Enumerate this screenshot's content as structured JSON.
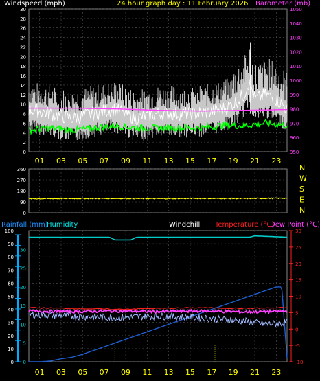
{
  "title": "24 hour graph day : 11 February 2026",
  "colors": {
    "wind": "#ffffff",
    "gust_fill": "#c8c8c8",
    "avg": "#00ff00",
    "baro": "#ff40ff",
    "dir": "#ffff00",
    "hum": "#00cccc",
    "rain": "#1e5fd0",
    "rain_axis": "#00aaff",
    "temp": "#ff2020",
    "dew": "#ff40ff",
    "chill": "#a0b8ff",
    "grid": "#555555",
    "hours": "#ffff00"
  },
  "hour_labels": [
    "01",
    "03",
    "05",
    "07",
    "09",
    "11",
    "13",
    "15",
    "17",
    "19",
    "21",
    "23"
  ],
  "panel1": {
    "left_title": "Windspeed (mph)",
    "right_title": "Barometer (mb)",
    "left_ticks": [
      "0",
      "2",
      "4",
      "6",
      "8",
      "10",
      "12",
      "14",
      "16",
      "18",
      "20",
      "22",
      "24",
      "26",
      "28",
      "30"
    ],
    "right_ticks": [
      "950",
      "960",
      "970",
      "980",
      "990",
      "1000",
      "1010",
      "1020",
      "1030",
      "1040",
      "1050"
    ],
    "ylim_left": [
      0,
      30
    ],
    "ylim_right": [
      950,
      1050
    ]
  },
  "panel2": {
    "left_ticks": [
      "0",
      "90",
      "180",
      "270",
      "360"
    ],
    "right_letters": [
      "N",
      "W",
      "S",
      "E",
      "N"
    ],
    "ylim": [
      0,
      360
    ]
  },
  "panel3": {
    "rain_title": "Rainfall (mm)",
    "humidity_title": "Humidity",
    "windchill_title": "Windchill",
    "temp_title": "Temperature (°C)",
    "dew_title": "Dew Point (°C)",
    "hum_ticks": [
      "0",
      "10",
      "20",
      "30",
      "40",
      "50",
      "60",
      "70",
      "80",
      "90",
      "100"
    ],
    "rain_ticks": [
      "0",
      "5",
      "10",
      "15",
      "20",
      "25",
      "30"
    ],
    "temp_ticks": [
      "-10",
      "-5",
      "0",
      "5",
      "10",
      "15",
      "20",
      "25",
      "30"
    ],
    "ylim_humidity": [
      0,
      100
    ],
    "ylim_rain": [
      0,
      35
    ],
    "ylim_temp": [
      -10,
      30
    ]
  },
  "chart_data": [
    {
      "type": "line",
      "title": "",
      "xlabel": "",
      "ylabel": "Windspeed (mph)",
      "x_range_hours": [
        0,
        24
      ],
      "series": [
        {
          "name": "Windspeed (mph)",
          "x": [
            0,
            2,
            4,
            6,
            8,
            10,
            12,
            14,
            16,
            18,
            19,
            20,
            20.5,
            21,
            22,
            23,
            24
          ],
          "y": [
            10,
            9,
            8,
            9,
            10,
            8,
            9,
            9,
            9,
            10,
            11,
            13,
            16,
            12,
            13,
            12,
            10
          ],
          "max_gust": 23
        },
        {
          "name": "avg",
          "x": [
            0,
            2,
            4,
            6,
            8,
            10,
            12,
            14,
            16,
            18,
            20,
            22,
            24
          ],
          "y": [
            4.5,
            5,
            4.5,
            5,
            5.5,
            5,
            5,
            5,
            5,
            5.5,
            5.5,
            6,
            5.5
          ]
        },
        {
          "name": "Barometer (mb)",
          "x": [
            0,
            4,
            8,
            12,
            16,
            20,
            24
          ],
          "y": [
            980.5,
            980.5,
            980,
            979,
            978.5,
            979,
            979.5
          ]
        }
      ]
    },
    {
      "type": "line",
      "ylabel": "Wind direction",
      "series": [
        {
          "name": "direction",
          "x": [
            0,
            4,
            8,
            12,
            16,
            20,
            24
          ],
          "y": [
            115,
            117,
            118,
            116,
            118,
            117,
            120
          ]
        }
      ]
    },
    {
      "type": "line",
      "series": [
        {
          "name": "Humidity",
          "x": [
            0,
            7.5,
            8,
            9.5,
            10,
            20.5,
            21,
            24
          ],
          "y": [
            95,
            95,
            93,
            93,
            95,
            95,
            96,
            95
          ]
        },
        {
          "name": "Rainfall (mm)",
          "x": [
            0,
            1,
            2,
            3,
            4,
            5,
            6,
            7,
            8,
            9,
            10,
            11,
            12,
            13,
            14,
            15,
            16,
            17,
            18,
            19,
            20,
            21,
            22,
            23,
            23.5,
            24
          ],
          "y": [
            0,
            0,
            0.2,
            0.8,
            1.2,
            2,
            3,
            4,
            5,
            6,
            7,
            8,
            9,
            10,
            11,
            12,
            13,
            14,
            15,
            16,
            17,
            18,
            19,
            20,
            20,
            1
          ]
        },
        {
          "name": "Temperature (°C)",
          "x": [
            0,
            4,
            8,
            12,
            16,
            20,
            24
          ],
          "y": [
            6.5,
            6.3,
            6,
            6.3,
            6.5,
            6.3,
            6.5
          ]
        },
        {
          "name": "Dew Point (°C)",
          "x": [
            0,
            4,
            8,
            12,
            16,
            20,
            24
          ],
          "y": [
            5.5,
            5.3,
            5.5,
            5.3,
            5.5,
            5.2,
            5.4
          ]
        },
        {
          "name": "Windchill",
          "x": [
            0,
            4,
            8,
            12,
            16,
            20,
            22,
            24
          ],
          "y": [
            4,
            3.5,
            3,
            3.5,
            3,
            2,
            1,
            1.5
          ]
        }
      ],
      "markers_hours": [
        8,
        17.3
      ]
    }
  ]
}
